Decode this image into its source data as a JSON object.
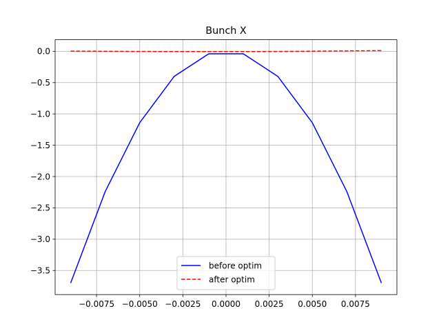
{
  "chart_data": {
    "type": "line",
    "title": "Bunch X",
    "xlabel": "",
    "ylabel": "",
    "xlim": [
      -0.0099,
      0.0099
    ],
    "ylim": [
      -3.8847,
      0.1847
    ],
    "grid": true,
    "legend_position": "lower center",
    "x_ticks": [
      -0.0075,
      -0.005,
      -0.0025,
      0.0,
      0.0025,
      0.005,
      0.0075
    ],
    "x_tick_labels": [
      "−0.0075",
      "−0.0050",
      "−0.0025",
      "0.0000",
      "0.0025",
      "0.0050",
      "0.0075"
    ],
    "y_ticks": [
      0.0,
      -0.5,
      -1.0,
      -1.5,
      -2.0,
      -2.5,
      -3.0,
      -3.5
    ],
    "y_tick_labels": [
      "0.0",
      "−0.5",
      "−1.0",
      "−1.5",
      "−2.0",
      "−2.5",
      "−3.0",
      "−3.5"
    ],
    "series": [
      {
        "name": "before optim",
        "color": "#0000ff",
        "style": "solid",
        "x": [
          -0.009,
          -0.007,
          -0.005,
          -0.003,
          -0.001,
          0.001,
          0.003,
          0.005,
          0.007,
          0.009
        ],
        "y": [
          -3.7,
          -2.24,
          -1.14,
          -0.4,
          -0.04,
          -0.04,
          -0.4,
          -1.14,
          -2.24,
          -3.7
        ]
      },
      {
        "name": "after optim",
        "color": "#ff0000",
        "style": "dashed",
        "x": [
          -0.009,
          -0.007,
          -0.005,
          -0.003,
          -0.001,
          0.001,
          0.003,
          0.005,
          0.007,
          0.009
        ],
        "y": [
          0.003,
          0.0,
          -0.003,
          -0.004,
          -0.005,
          -0.004,
          -0.003,
          0.001,
          0.006,
          0.011
        ]
      }
    ]
  }
}
